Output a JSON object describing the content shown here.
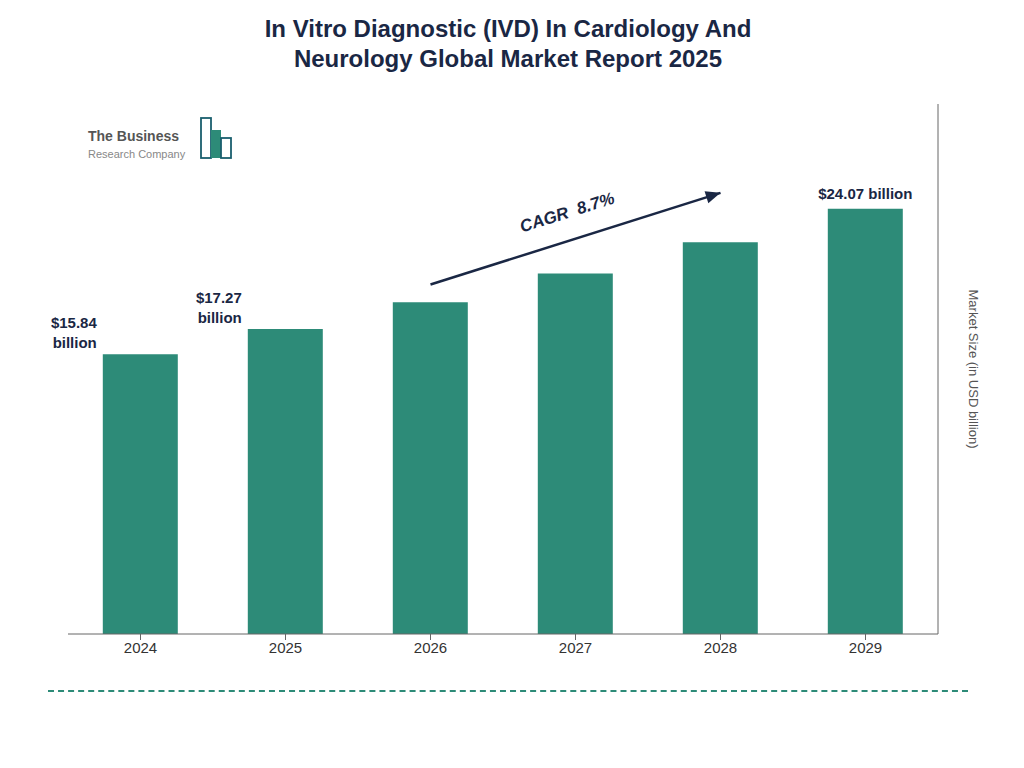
{
  "chart_data": {
    "type": "bar",
    "title": "In Vitro Diagnostic (IVD) In Cardiology And\nNeurology Global Market Report 2025",
    "categories": [
      "2024",
      "2025",
      "2026",
      "2027",
      "2028",
      "2029"
    ],
    "values": [
      15.84,
      17.27,
      18.78,
      20.41,
      22.17,
      24.07
    ],
    "color": "#2d8b78",
    "ylabel": "Market Size (in USD billion)",
    "ylim": [
      0,
      30
    ],
    "data_labels": true,
    "value_labels": [
      "$15.84\nbillion",
      "$17.27\nbillion",
      null,
      null,
      null,
      "$24.07 billion"
    ],
    "annotations": [
      "CAGR  8.7%",
      "The Business",
      "Research Company"
    ],
    "grid": false,
    "tick_labels": "x"
  }
}
